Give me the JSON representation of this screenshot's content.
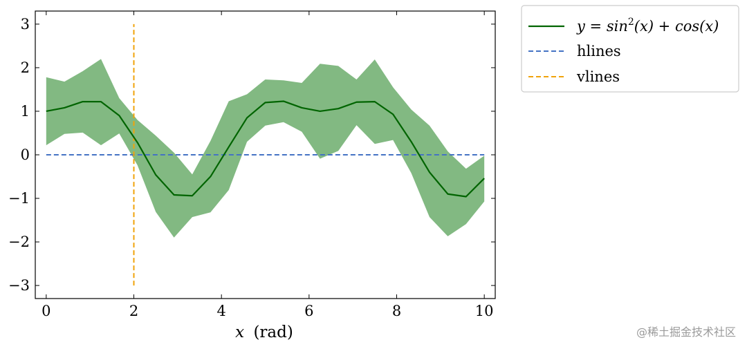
{
  "chart_data": {
    "type": "line",
    "xlabel_var": "x",
    "xlabel_unit": "(rad)",
    "xlim": [
      -0.25,
      10.25
    ],
    "ylim": [
      -3.3,
      3.3
    ],
    "xticks": [
      0,
      2,
      4,
      6,
      8,
      10
    ],
    "yticks": [
      -3,
      -2,
      -1,
      0,
      1,
      2,
      3
    ],
    "ytick_labels": [
      "−3",
      "−2",
      "−1",
      "0",
      "1",
      "2",
      "3"
    ],
    "grid": false,
    "legend_position": "outside-top-right",
    "series": [
      {
        "name": "y = sin²(x) + cos(x)",
        "kind": "line",
        "color": "#006400",
        "x": [
          0,
          0.4167,
          0.8333,
          1.25,
          1.6667,
          2.0833,
          2.5,
          2.9167,
          3.3333,
          3.75,
          4.1667,
          4.5833,
          5.0,
          5.4167,
          5.8333,
          6.25,
          6.6667,
          7.0833,
          7.5,
          7.9167,
          8.3333,
          8.75,
          9.1667,
          9.5833,
          10.0
        ],
        "y": [
          1.0,
          1.08,
          1.22,
          1.22,
          0.9,
          0.28,
          -0.46,
          -0.92,
          -0.94,
          -0.5,
          0.18,
          0.85,
          1.2,
          1.23,
          1.08,
          1.0,
          1.06,
          1.21,
          1.22,
          0.93,
          0.3,
          -0.4,
          -0.9,
          -0.96,
          -0.54
        ]
      },
      {
        "name": "hlines",
        "kind": "hline",
        "color": "#4472c4",
        "y": 0,
        "xmin": 0,
        "xmax": 10
      },
      {
        "name": "vlines",
        "kind": "vline",
        "color": "#f0a30a",
        "x": 2,
        "ymin": -3,
        "ymax": 3
      }
    ],
    "band": {
      "color": "#2e8b2e",
      "opacity": 0.6,
      "upper": [
        1.78,
        1.68,
        1.92,
        2.2,
        1.3,
        0.8,
        0.44,
        0.05,
        -0.45,
        0.32,
        1.23,
        1.39,
        1.73,
        1.71,
        1.65,
        2.09,
        2.04,
        1.73,
        2.19,
        1.55,
        1.04,
        0.67,
        0.08,
        -0.32,
        -0.02
      ],
      "lower": [
        0.22,
        0.48,
        0.51,
        0.22,
        0.49,
        -0.24,
        -1.31,
        -1.9,
        -1.43,
        -1.32,
        -0.81,
        0.3,
        0.67,
        0.75,
        0.53,
        -0.09,
        0.09,
        0.68,
        0.25,
        0.34,
        -0.42,
        -1.43,
        -1.87,
        -1.59,
        -1.07
      ]
    },
    "legend": [
      {
        "label_prefix": "y",
        "label_eq": " = ",
        "label_body": "sin",
        "label_sup": "2",
        "label_rest": "(x) + cos(x)"
      },
      {
        "label": "hlines"
      },
      {
        "label": "vlines"
      }
    ]
  },
  "watermark": "@稀土掘金技术社区"
}
